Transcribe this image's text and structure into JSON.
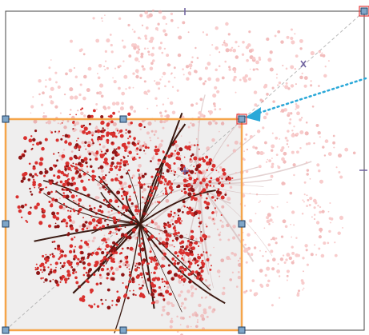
{
  "canvas": {
    "original_frame": {
      "stroke": "#444444"
    },
    "scaled_frame": {
      "stroke": "#f5a54a",
      "fill": "#efeeee"
    },
    "handles": {
      "fill": "#7fa6c8",
      "stroke": "#1f3f63"
    },
    "active_handle": {
      "stroke": "#e33b3b"
    },
    "drag_arrow": {
      "color": "#2aa8d8"
    },
    "crosshair_color": "#6c5f9e",
    "diagonal_guide_color": "#b9b9b9"
  },
  "objects": {
    "ghost_tree": {
      "fill": "#f29a9a",
      "branch": "#c9a7a7",
      "opacity": 0.5
    },
    "scaled_tree": {
      "fill": "#d9302e",
      "dark": "#8f1616",
      "branch": "#3b1a12"
    }
  },
  "icons": {
    "drag-direction-arrow": "arrow",
    "scale-handle": "square",
    "center-crosshair": "plus"
  }
}
